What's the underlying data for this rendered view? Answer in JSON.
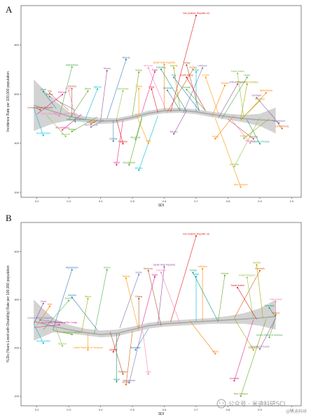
{
  "figure": {
    "watermark": "公众号 · 米迪科研SCI",
    "watermark_sub": "@米迪科研"
  },
  "colors": {
    "palette": [
      "#e41a1c",
      "#377eb8",
      "#4daf4a",
      "#984ea3",
      "#ff7f00",
      "#a6a600",
      "#a65628",
      "#f781bf",
      "#1b9e77",
      "#d95f02",
      "#7570b3",
      "#e7298a",
      "#66a61e",
      "#00bcd4",
      "#8bc34a",
      "#ff9800"
    ],
    "band": "#c8c8c8",
    "curve": "#a9a9a9",
    "frame": "#333333"
  },
  "chart_data": [
    {
      "panel": "A",
      "type": "scatter",
      "xlabel": "SDI",
      "ylabel": "Incidence Rate per 100,000 population",
      "xlim": [
        0.15,
        1.03
      ],
      "ylim": [
        180,
        960
      ],
      "xticks": [
        0.2,
        0.3,
        0.4,
        0.5,
        0.6,
        0.7,
        0.8,
        0.9,
        1.0
      ],
      "xtick_labels": [
        "0.2",
        "0.3",
        "0.4",
        "0.5",
        "0.6",
        "0.7",
        "0.8",
        "0.9",
        "1.0"
      ],
      "yticks": [
        200,
        400,
        600,
        800
      ],
      "ytick_labels": [
        "200",
        "400",
        "600",
        "800"
      ],
      "smooth": {
        "x": [
          0.19,
          0.25,
          0.3,
          0.35,
          0.4,
          0.45,
          0.5,
          0.55,
          0.6,
          0.65,
          0.7,
          0.75,
          0.8,
          0.85,
          0.9,
          0.95
        ],
        "y": [
          555,
          530,
          510,
          497,
          490,
          492,
          505,
          522,
          532,
          534,
          528,
          517,
          508,
          500,
          495,
          492
        ],
        "lower": [
          450,
          480,
          492,
          485,
          478,
          482,
          495,
          512,
          522,
          524,
          518,
          506,
          496,
          485,
          470,
          440
        ],
        "upper": [
          660,
          580,
          528,
          509,
          502,
          502,
          515,
          532,
          542,
          544,
          538,
          528,
          520,
          515,
          520,
          545
        ]
      },
      "points": [
        {
          "label": "Iran (Islamic Republic of)",
          "x": 0.7,
          "y": 920
        },
        {
          "label": "Nigeria",
          "x": 0.48,
          "y": 740
        },
        {
          "label": "Afghanistan",
          "x": 0.31,
          "y": 710
        },
        {
          "label": "Yemen",
          "x": 0.42,
          "y": 695
        },
        {
          "label": "Syrian Arab Republic",
          "x": 0.6,
          "y": 720
        },
        {
          "label": "Algeria",
          "x": 0.63,
          "y": 706
        },
        {
          "label": "Turkey",
          "x": 0.67,
          "y": 718
        },
        {
          "label": "Morocco",
          "x": 0.55,
          "y": 706
        },
        {
          "label": "Palestine",
          "x": 0.59,
          "y": 700
        },
        {
          "label": "Tunisia",
          "x": 0.69,
          "y": 700
        },
        {
          "label": "Lebanon",
          "x": 0.72,
          "y": 706
        },
        {
          "label": "Egypt",
          "x": 0.57,
          "y": 690
        },
        {
          "label": "Sudan",
          "x": 0.52,
          "y": 688
        },
        {
          "label": "Libya",
          "x": 0.7,
          "y": 690
        },
        {
          "label": "Saudi Arabia",
          "x": 0.83,
          "y": 684
        },
        {
          "label": "Jordan",
          "x": 0.73,
          "y": 668
        },
        {
          "label": "South Africa",
          "x": 0.67,
          "y": 668
        },
        {
          "label": "Iraq",
          "x": 0.63,
          "y": 668
        },
        {
          "label": "Israel",
          "x": 0.86,
          "y": 668
        },
        {
          "label": "United Kingdom",
          "x": 0.83,
          "y": 640
        },
        {
          "label": "Greece",
          "x": 0.79,
          "y": 635
        },
        {
          "label": "United Arab Emirates",
          "x": 0.86,
          "y": 640
        },
        {
          "label": "Gambia",
          "x": 0.31,
          "y": 622
        },
        {
          "label": "Guinea",
          "x": 0.3,
          "y": 614
        },
        {
          "label": "Chad",
          "x": 0.22,
          "y": 610
        },
        {
          "label": "Mali",
          "x": 0.24,
          "y": 603
        },
        {
          "label": "Eritrea",
          "x": 0.24,
          "y": 590
        },
        {
          "label": "Ethiopia",
          "x": 0.28,
          "y": 598
        },
        {
          "label": "Benin",
          "x": 0.36,
          "y": 612
        },
        {
          "label": "Djibouti",
          "x": 0.39,
          "y": 620
        },
        {
          "label": "Mauritania",
          "x": 0.47,
          "y": 613
        },
        {
          "label": "Ghana",
          "x": 0.52,
          "y": 622
        },
        {
          "label": "Qatar",
          "x": 0.56,
          "y": 620
        },
        {
          "label": "Armenia",
          "x": 0.61,
          "y": 615
        },
        {
          "label": "Bahrain",
          "x": 0.67,
          "y": 618
        },
        {
          "label": "Denmark",
          "x": 0.89,
          "y": 585
        },
        {
          "label": "Netherlands",
          "x": 0.92,
          "y": 605
        },
        {
          "label": "Germany",
          "x": 0.9,
          "y": 572
        },
        {
          "label": "Central African Republic",
          "x": 0.21,
          "y": 536
        },
        {
          "label": "Democratic Republic of the Congo",
          "x": 0.27,
          "y": 512
        },
        {
          "label": "Solomon Islands",
          "x": 0.32,
          "y": 488
        },
        {
          "label": "Uganda",
          "x": 0.37,
          "y": 478
        },
        {
          "label": "Sierra Leone",
          "x": 0.37,
          "y": 466
        },
        {
          "label": "Mozambique",
          "x": 0.28,
          "y": 454
        },
        {
          "label": "Malawi",
          "x": 0.31,
          "y": 448
        },
        {
          "label": "South Sudan",
          "x": 0.22,
          "y": 432
        },
        {
          "label": "Burundi",
          "x": 0.29,
          "y": 428
        },
        {
          "label": "India",
          "x": 0.55,
          "y": 400
        },
        {
          "label": "Pakistan",
          "x": 0.47,
          "y": 398
        },
        {
          "label": "Zambia",
          "x": 0.44,
          "y": 409
        },
        {
          "label": "Myanmar",
          "x": 0.51,
          "y": 415
        },
        {
          "label": "Mexico",
          "x": 0.63,
          "y": 438
        },
        {
          "label": "China",
          "x": 0.76,
          "y": 418
        },
        {
          "label": "France",
          "x": 0.85,
          "y": 420
        },
        {
          "label": "Canada",
          "x": 0.88,
          "y": 418
        },
        {
          "label": "Singapore",
          "x": 0.87,
          "y": 400
        },
        {
          "label": "Republic of Korea",
          "x": 0.9,
          "y": 398
        },
        {
          "label": "Luxembourg",
          "x": 0.97,
          "y": 460
        },
        {
          "label": "Switzerland",
          "x": 0.96,
          "y": 482
        },
        {
          "label": "Nepal",
          "x": 0.45,
          "y": 312
        },
        {
          "label": "Bangladesh",
          "x": 0.49,
          "y": 312
        },
        {
          "label": "Bhutan",
          "x": 0.52,
          "y": 290
        },
        {
          "label": "Australia",
          "x": 0.82,
          "y": 305
        },
        {
          "label": "New Zealand",
          "x": 0.84,
          "y": 222
        }
      ]
    },
    {
      "panel": "B",
      "type": "scatter",
      "xlabel": "SDI",
      "ylabel": "YLDs (Years Lived with Disability) Rate per 100,000 population",
      "xlim": [
        0.15,
        1.03
      ],
      "ylim": [
        80,
        460
      ],
      "xticks": [
        0.2,
        0.3,
        0.4,
        0.5,
        0.6,
        0.7,
        0.8,
        0.9,
        1.0
      ],
      "xtick_labels": [
        "0.2",
        "0.3",
        "0.4",
        "0.5",
        "0.6",
        "0.7",
        "0.8",
        "0.9",
        "1.0"
      ],
      "yticks": [
        100,
        200,
        300,
        400
      ],
      "ytick_labels": [
        "100",
        "200",
        "300",
        "400"
      ],
      "smooth": {
        "x": [
          0.19,
          0.25,
          0.3,
          0.35,
          0.4,
          0.45,
          0.5,
          0.55,
          0.6,
          0.65,
          0.7,
          0.75,
          0.8,
          0.85,
          0.9,
          0.95
        ],
        "y": [
          255,
          245,
          238,
          232,
          228,
          230,
          238,
          246,
          250,
          252,
          254,
          256,
          258,
          260,
          262,
          265
        ],
        "lower": [
          215,
          232,
          230,
          226,
          222,
          224,
          232,
          240,
          244,
          246,
          248,
          250,
          250,
          250,
          246,
          238
        ],
        "upper": [
          300,
          262,
          248,
          240,
          236,
          238,
          244,
          252,
          256,
          258,
          260,
          262,
          266,
          272,
          282,
          300
        ]
      },
      "points": [
        {
          "label": "Iran (Islamic Republic of)",
          "x": 0.7,
          "y": 432
        },
        {
          "label": "Afghanistan",
          "x": 0.31,
          "y": 362
        },
        {
          "label": "Yemen",
          "x": 0.42,
          "y": 362
        },
        {
          "label": "Syrian Arab Republic",
          "x": 0.6,
          "y": 368
        },
        {
          "label": "Lebanon",
          "x": 0.72,
          "y": 364
        },
        {
          "label": "Austria",
          "x": 0.89,
          "y": 372
        },
        {
          "label": "Morocco",
          "x": 0.55,
          "y": 360
        },
        {
          "label": "Palestine",
          "x": 0.59,
          "y": 356
        },
        {
          "label": "Tunisia",
          "x": 0.69,
          "y": 356
        },
        {
          "label": "Denmark",
          "x": 0.9,
          "y": 360
        },
        {
          "label": "Sudan",
          "x": 0.52,
          "y": 352
        },
        {
          "label": "Egypt",
          "x": 0.57,
          "y": 347
        },
        {
          "label": "Greece",
          "x": 0.79,
          "y": 350
        },
        {
          "label": "Libya",
          "x": 0.7,
          "y": 348
        },
        {
          "label": "United Kingdom",
          "x": 0.86,
          "y": 346
        },
        {
          "label": "Nigeria",
          "x": 0.48,
          "y": 344
        },
        {
          "label": "Saudi Arabia",
          "x": 0.83,
          "y": 325
        },
        {
          "label": "Gambia",
          "x": 0.31,
          "y": 305
        },
        {
          "label": "Guinea",
          "x": 0.3,
          "y": 298
        },
        {
          "label": "Chad",
          "x": 0.22,
          "y": 292
        },
        {
          "label": "Mali",
          "x": 0.24,
          "y": 286
        },
        {
          "label": "Benin",
          "x": 0.36,
          "y": 302
        },
        {
          "label": "Ghana",
          "x": 0.52,
          "y": 302
        },
        {
          "label": "Switzerland",
          "x": 0.95,
          "y": 296
        },
        {
          "label": "Germany",
          "x": 0.93,
          "y": 283
        },
        {
          "label": "Finland",
          "x": 0.95,
          "y": 268
        },
        {
          "label": "Central African Republic",
          "x": 0.21,
          "y": 258
        },
        {
          "label": "Democratic Republic of the Congo",
          "x": 0.27,
          "y": 248
        },
        {
          "label": "Solomon Islands",
          "x": 0.31,
          "y": 228
        },
        {
          "label": "South Sudan",
          "x": 0.22,
          "y": 210
        },
        {
          "label": "Burundi",
          "x": 0.28,
          "y": 204
        },
        {
          "label": "United Republic of Tanzania",
          "x": 0.36,
          "y": 196
        },
        {
          "label": "Zambia",
          "x": 0.44,
          "y": 192
        },
        {
          "label": "Myanmar",
          "x": 0.51,
          "y": 196
        },
        {
          "label": "United States of America",
          "x": 0.93,
          "y": 222
        },
        {
          "label": "Republic of Korea",
          "x": 0.9,
          "y": 198
        },
        {
          "label": "China",
          "x": 0.76,
          "y": 188
        },
        {
          "label": "Singapore",
          "x": 0.88,
          "y": 196
        },
        {
          "label": "Pakistan",
          "x": 0.47,
          "y": 146
        },
        {
          "label": "India",
          "x": 0.55,
          "y": 146
        },
        {
          "label": "Nepal",
          "x": 0.45,
          "y": 130
        },
        {
          "label": "Bhutan",
          "x": 0.48,
          "y": 124
        },
        {
          "label": "Bangladesh",
          "x": 0.49,
          "y": 128
        },
        {
          "label": "Australia",
          "x": 0.82,
          "y": 132
        },
        {
          "label": "New Zealand",
          "x": 0.84,
          "y": 100
        }
      ]
    }
  ]
}
